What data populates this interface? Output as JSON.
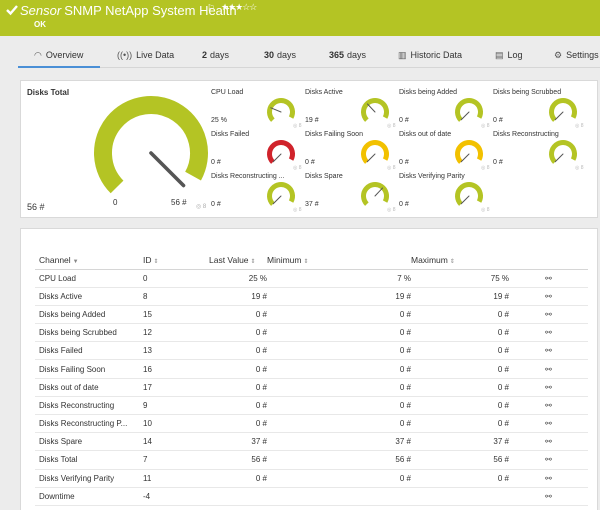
{
  "header": {
    "sensor_label": "Sensor",
    "sensor_name": "SNMP NetApp System Health",
    "flag_icon": "flag-icon",
    "stars": "★★★☆☆",
    "status": "OK",
    "bg_color": "#b4c424"
  },
  "tabs": [
    {
      "icon": "gauge-icon",
      "label": "Overview",
      "active": true
    },
    {
      "icon": "broadcast-icon",
      "label": "Live Data"
    },
    {
      "num": "2",
      "label": "days"
    },
    {
      "num": "30",
      "label": "days"
    },
    {
      "num": "365",
      "label": "days"
    },
    {
      "icon": "chart-icon",
      "label": "Historic Data"
    },
    {
      "icon": "log-icon",
      "label": "Log"
    },
    {
      "icon": "gear-icon",
      "label": "Settings"
    }
  ],
  "main_gauge": {
    "label": "Disks Total",
    "min": "0",
    "max": "56 #",
    "value": "56 #",
    "fraction": 1.0,
    "color": "#b4c424"
  },
  "small_gauges": [
    {
      "label": "CPU Load",
      "value": "25 %",
      "fraction": 0.25,
      "color": "#b4c424"
    },
    {
      "label": "Disks Active",
      "value": "19 #",
      "fraction": 0.34,
      "color": "#b4c424"
    },
    {
      "label": "Disks being Added",
      "value": "0 #",
      "fraction": 0.0,
      "color": "#b4c424"
    },
    {
      "label": "Disks being Scrubbed",
      "value": "0 #",
      "fraction": 0.0,
      "color": "#b4c424"
    },
    {
      "label": "Disks Failed",
      "value": "0 #",
      "fraction": 0.0,
      "color": "#d0232b"
    },
    {
      "label": "Disks Failing Soon",
      "value": "0 #",
      "fraction": 0.0,
      "color": "#f2c100"
    },
    {
      "label": "Disks out of date",
      "value": "0 #",
      "fraction": 0.0,
      "color": "#f2c100"
    },
    {
      "label": "Disks Reconstructing",
      "value": "0 #",
      "fraction": 0.0,
      "color": "#b4c424"
    },
    {
      "label": "Disks Reconstructing ...",
      "value": "0 #",
      "fraction": 0.0,
      "color": "#b4c424"
    },
    {
      "label": "Disks Spare",
      "value": "37 #",
      "fraction": 0.66,
      "color": "#b4c424"
    },
    {
      "label": "Disks Verifying Parity",
      "value": "0 #",
      "fraction": 0.0,
      "color": "#b4c424"
    }
  ],
  "table": {
    "headers": {
      "channel": "Channel",
      "id": "ID",
      "last": "Last Value",
      "min": "Minimum",
      "max": "Maximum"
    },
    "rows": [
      {
        "channel": "CPU Load",
        "id": "0",
        "last": "25 %",
        "min": "7 %",
        "max": "75 %"
      },
      {
        "channel": "Disks Active",
        "id": "8",
        "last": "19 #",
        "min": "19 #",
        "max": "19 #"
      },
      {
        "channel": "Disks being Added",
        "id": "15",
        "last": "0 #",
        "min": "0 #",
        "max": "0 #"
      },
      {
        "channel": "Disks being Scrubbed",
        "id": "12",
        "last": "0 #",
        "min": "0 #",
        "max": "0 #"
      },
      {
        "channel": "Disks Failed",
        "id": "13",
        "last": "0 #",
        "min": "0 #",
        "max": "0 #"
      },
      {
        "channel": "Disks Failing Soon",
        "id": "16",
        "last": "0 #",
        "min": "0 #",
        "max": "0 #"
      },
      {
        "channel": "Disks out of date",
        "id": "17",
        "last": "0 #",
        "min": "0 #",
        "max": "0 #"
      },
      {
        "channel": "Disks Reconstructing",
        "id": "9",
        "last": "0 #",
        "min": "0 #",
        "max": "0 #"
      },
      {
        "channel": "Disks Reconstructing P...",
        "id": "10",
        "last": "0 #",
        "min": "0 #",
        "max": "0 #"
      },
      {
        "channel": "Disks Spare",
        "id": "14",
        "last": "37 #",
        "min": "37 #",
        "max": "37 #"
      },
      {
        "channel": "Disks Total",
        "id": "7",
        "last": "56 #",
        "min": "56 #",
        "max": "56 #"
      },
      {
        "channel": "Disks Verifying Parity",
        "id": "11",
        "last": "0 #",
        "min": "0 #",
        "max": "0 #"
      },
      {
        "channel": "Downtime",
        "id": "-4",
        "last": "",
        "min": "",
        "max": ""
      }
    ]
  }
}
